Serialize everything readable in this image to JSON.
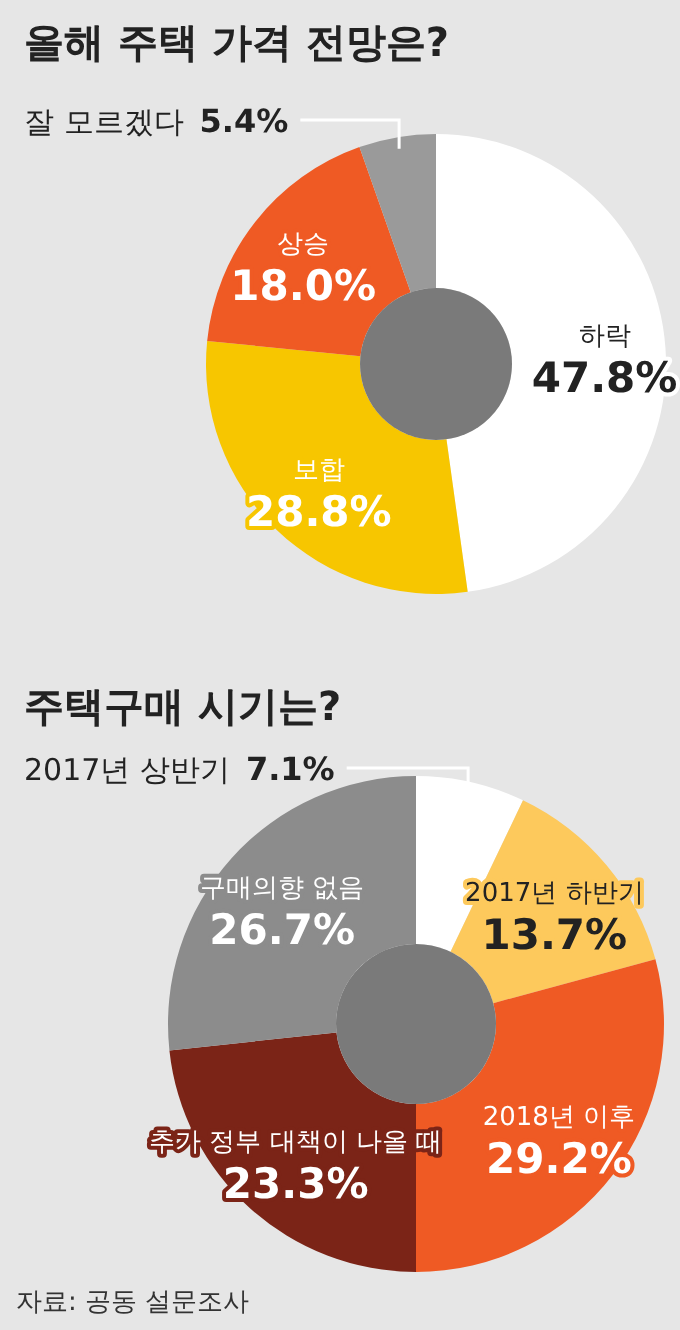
{
  "chart_data": [
    {
      "type": "donut",
      "title": "올해 주택 가격 전망은?",
      "categories": [
        "하락",
        "보합",
        "상승",
        "잘 모르겠다"
      ],
      "values": [
        47.8,
        28.8,
        18.0,
        5.4
      ],
      "value_labels": [
        "47.8%",
        "28.8%",
        "18.0%",
        "5.4%"
      ],
      "colors": [
        "#ffffff",
        "#f7c600",
        "#ef5a24",
        "#9a9a9a"
      ]
    },
    {
      "type": "donut",
      "title": "주택구매 시기는?",
      "categories": [
        "2017년 상반기",
        "2017년 하반기",
        "2018년 이후",
        "추가 정부 대책이 나올 때",
        "구매의향 없음"
      ],
      "values": [
        7.1,
        13.7,
        29.2,
        23.3,
        26.7
      ],
      "value_labels": [
        "7.1%",
        "13.7%",
        "29.2%",
        "23.3%",
        "26.7%"
      ],
      "colors": [
        "#ffffff",
        "#fdc95c",
        "#ef5a24",
        "#7b2417",
        "#8c8c8c"
      ],
      "annotations": [
        "자료: 공동 설문조사"
      ]
    }
  ]
}
